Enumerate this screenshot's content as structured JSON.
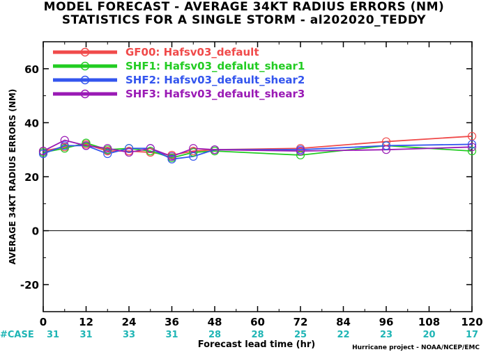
{
  "chart_data": {
    "type": "line",
    "title": "MODEL FORECAST - AVERAGE 34KT RADIUS ERRORS (NM)",
    "subtitle": "STATISTICS FOR A SINGLE STORM - al202020_TEDDY",
    "xlabel": "Forecast lead time (hr)",
    "ylabel": "AVERAGE 34KT RADIUS ERRORS (NM)",
    "xlim": [
      0,
      120
    ],
    "ylim": [
      -30,
      70
    ],
    "xticks": [
      0,
      12,
      24,
      36,
      48,
      60,
      72,
      84,
      96,
      108,
      120
    ],
    "yticks": [
      -20,
      0,
      20,
      40,
      60
    ],
    "grid": false,
    "legend_position": "top-left",
    "cases_label": "#CASE",
    "cases": [
      {
        "x": 0,
        "n": "31"
      },
      {
        "x": 12,
        "n": "31"
      },
      {
        "x": 24,
        "n": "33"
      },
      {
        "x": 36,
        "n": "31"
      },
      {
        "x": 48,
        "n": "28"
      },
      {
        "x": 60,
        "n": "28"
      },
      {
        "x": 72,
        "n": "25"
      },
      {
        "x": 84,
        "n": "22"
      },
      {
        "x": 96,
        "n": "23"
      },
      {
        "x": 108,
        "n": "20"
      },
      {
        "x": 120,
        "n": "17"
      }
    ],
    "credit": "Hurricane project - NOAA/NCEP/EMC",
    "series": [
      {
        "name": "GF00: Hafsv03_default",
        "color": "#f04a4a",
        "x": [
          0,
          6,
          12,
          18,
          24,
          30,
          36,
          42,
          48,
          72,
          96,
          120
        ],
        "y": [
          29.5,
          31,
          32,
          29.5,
          29.5,
          29,
          28,
          29.5,
          30,
          30.5,
          33,
          35
        ]
      },
      {
        "name": "SHF1: Hafsv03_defalut_shear1",
        "color": "#22cc22",
        "x": [
          0,
          6,
          12,
          18,
          24,
          30,
          36,
          42,
          48,
          72,
          96,
          120
        ],
        "y": [
          29,
          30.5,
          32.5,
          30,
          30.5,
          29.5,
          27,
          29,
          29.5,
          28,
          31.5,
          29.5
        ]
      },
      {
        "name": "SHF2: Hafsv03_default_shear2",
        "color": "#3355ee",
        "x": [
          0,
          6,
          12,
          18,
          24,
          30,
          36,
          42,
          48,
          72,
          96,
          120
        ],
        "y": [
          28.5,
          31.5,
          31.5,
          28.5,
          30.5,
          30.5,
          26.5,
          27.5,
          30,
          30,
          31.5,
          32
        ]
      },
      {
        "name": "SHF3: Hafsv03_default_shear3",
        "color": "#9a1ab5",
        "x": [
          0,
          6,
          12,
          18,
          24,
          30,
          36,
          42,
          48,
          72,
          96,
          120
        ],
        "y": [
          29.5,
          33.5,
          31.5,
          30.5,
          29,
          30.5,
          27.5,
          30.5,
          30,
          29.5,
          30,
          31
        ]
      }
    ]
  }
}
